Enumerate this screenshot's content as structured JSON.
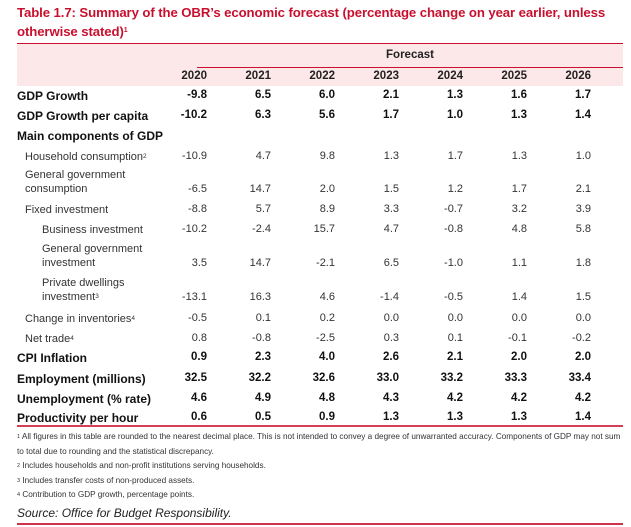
{
  "title": {
    "text": "Table 1.7: Summary of the OBR’s economic forecast (percentage change on year earlier, unless otherwise stated)",
    "footnote_mark": "1"
  },
  "header": {
    "forecast_label": "Forecast",
    "years": [
      "2020",
      "2021",
      "2022",
      "2023",
      "2024",
      "2025",
      "2026"
    ]
  },
  "rows": [
    {
      "label": "GDP Growth",
      "sup": "",
      "style": "bold",
      "values": [
        "-9.8",
        "6.5",
        "6.0",
        "2.1",
        "1.3",
        "1.6",
        "1.7"
      ]
    },
    {
      "label": "GDP Growth per capita",
      "sup": "",
      "style": "bold",
      "values": [
        "-10.2",
        "6.3",
        "5.6",
        "1.7",
        "1.0",
        "1.3",
        "1.4"
      ]
    },
    {
      "label": "Main components of GDP",
      "sup": "",
      "style": "bold",
      "values": [
        "",
        "",
        "",
        "",
        "",
        "",
        ""
      ]
    },
    {
      "label": "Household consumption",
      "sup": "2",
      "style": "sub",
      "values": [
        "-10.9",
        "4.7",
        "9.8",
        "1.3",
        "1.7",
        "1.3",
        "1.0"
      ]
    },
    {
      "label": "General government consumption",
      "label_lines": [
        "General government",
        "consumption"
      ],
      "sup": "",
      "style": "sub",
      "values": [
        "-6.5",
        "14.7",
        "2.0",
        "1.5",
        "1.2",
        "1.7",
        "2.1"
      ]
    },
    {
      "label": "Fixed investment",
      "sup": "",
      "style": "sub",
      "values": [
        "-8.8",
        "5.7",
        "8.9",
        "3.3",
        "-0.7",
        "3.2",
        "3.9"
      ]
    },
    {
      "label": "Business investment",
      "sup": "",
      "style": "subsub",
      "values": [
        "-10.2",
        "-2.4",
        "15.7",
        "4.7",
        "-0.8",
        "4.8",
        "5.8"
      ]
    },
    {
      "label": "General government investment",
      "label_lines": [
        "General government",
        "investment"
      ],
      "sup": "",
      "style": "subsub",
      "values": [
        "3.5",
        "14.7",
        "-2.1",
        "6.5",
        "-1.0",
        "1.1",
        "1.8"
      ]
    },
    {
      "label": "Private dwellings investment",
      "label_lines": [
        "Private dwellings",
        "investment"
      ],
      "sup": "3",
      "style": "subsub",
      "values": [
        "-13.1",
        "16.3",
        "4.6",
        "-1.4",
        "-0.5",
        "1.4",
        "1.5"
      ]
    },
    {
      "label": "Change in inventories",
      "sup": "4",
      "style": "sub",
      "values": [
        "-0.5",
        "0.1",
        "0.2",
        "0.0",
        "0.0",
        "0.0",
        "0.0"
      ]
    },
    {
      "label": "Net trade",
      "sup": "4",
      "style": "sub",
      "values": [
        "0.8",
        "-0.8",
        "-2.5",
        "0.3",
        "0.1",
        "-0.1",
        "-0.2"
      ]
    },
    {
      "label": "CPI Inflation",
      "sup": "",
      "style": "bold",
      "values": [
        "0.9",
        "2.3",
        "4.0",
        "2.6",
        "2.1",
        "2.0",
        "2.0"
      ]
    },
    {
      "label": "Employment (millions)",
      "sup": "",
      "style": "bold",
      "values": [
        "32.5",
        "32.2",
        "32.6",
        "33.0",
        "33.2",
        "33.3",
        "33.4"
      ]
    },
    {
      "label": "Unemployment (% rate)",
      "sup": "",
      "style": "bold",
      "values": [
        "4.6",
        "4.9",
        "4.8",
        "4.3",
        "4.2",
        "4.2",
        "4.2"
      ]
    },
    {
      "label": "Productivity per hour",
      "sup": "",
      "style": "bold",
      "values": [
        "0.6",
        "0.5",
        "0.9",
        "1.3",
        "1.3",
        "1.3",
        "1.4"
      ]
    }
  ],
  "footnotes": [
    {
      "mark": "1",
      "text": "All figures in this table are rounded to the nearest decimal place. This is not intended to convey a degree of unwarranted accuracy. Components of GDP may not sum to total due to rounding and the statistical discrepancy."
    },
    {
      "mark": "2",
      "text": "Includes households and non-profit institutions serving households."
    },
    {
      "mark": "3",
      "text": "Includes transfer costs of non-produced assets."
    },
    {
      "mark": "4",
      "text": "Contribution to GDP growth, percentage points."
    }
  ],
  "source": "Source: Office for Budget Responsibility.",
  "colors": {
    "accent": "#c8102e",
    "header_band": "#fde8e9"
  }
}
